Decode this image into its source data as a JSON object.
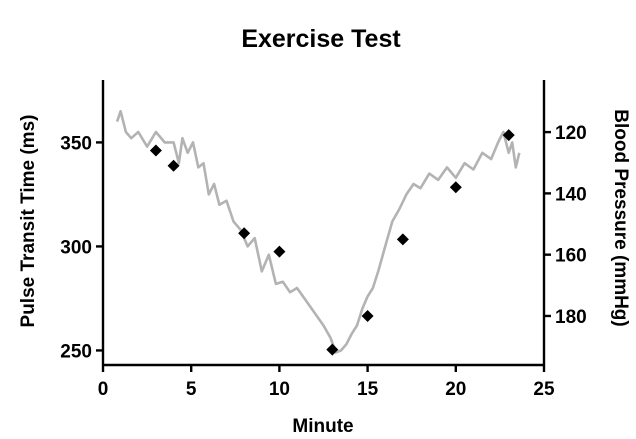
{
  "chart_data": {
    "type": "line",
    "title": "Exercise Test",
    "xlabel": "Minute",
    "ylabel": "Pulse Transit Time (ms)",
    "y2label": "Blood Pressure (mmHg)",
    "xlim": [
      0,
      25
    ],
    "ylim": [
      243,
      380
    ],
    "y2lim": [
      196,
      103
    ],
    "xticks": [
      "0",
      "5",
      "10",
      "15",
      "20",
      "25"
    ],
    "yticks": [
      "250",
      "300",
      "350"
    ],
    "y2ticks": [
      "120",
      "140",
      "160",
      "180"
    ],
    "grid": false,
    "colors": {
      "trace": "#b3b3b3",
      "points": "#000000"
    },
    "series": [
      {
        "axis": "left",
        "style": "line",
        "x": [
          0.8,
          1.0,
          1.3,
          1.6,
          2.0,
          2.5,
          3.0,
          3.5,
          4.0,
          4.3,
          4.5,
          4.8,
          5.1,
          5.4,
          5.7,
          6.0,
          6.3,
          6.6,
          7.0,
          7.4,
          7.8,
          8.2,
          8.6,
          9.0,
          9.4,
          9.8,
          10.2,
          10.6,
          11.0,
          11.5,
          12.0,
          12.5,
          12.9,
          13.2,
          13.5,
          13.8,
          14.1,
          14.4,
          14.7,
          15.0,
          15.3,
          15.6,
          16.0,
          16.4,
          16.8,
          17.2,
          17.6,
          18.0,
          18.5,
          19.0,
          19.5,
          20.0,
          20.5,
          21.0,
          21.5,
          22.0,
          22.4,
          22.7,
          23.0,
          23.2,
          23.4,
          23.6
        ],
        "y": [
          360,
          365,
          355,
          352,
          355,
          348,
          355,
          350,
          350,
          340,
          352,
          345,
          350,
          338,
          340,
          325,
          330,
          320,
          322,
          312,
          308,
          300,
          304,
          288,
          296,
          282,
          283,
          278,
          280,
          274,
          268,
          262,
          256,
          249,
          250,
          253,
          258,
          262,
          270,
          276,
          280,
          288,
          300,
          312,
          318,
          325,
          330,
          328,
          335,
          332,
          338,
          333,
          340,
          337,
          345,
          342,
          350,
          355,
          345,
          350,
          338,
          345
        ]
      },
      {
        "axis": "right",
        "style": "points",
        "marker": "diamond",
        "x": [
          3,
          4,
          8,
          10,
          13,
          15,
          17,
          20,
          23
        ],
        "y": [
          126,
          131,
          153,
          159,
          191,
          180,
          155,
          138,
          121
        ]
      }
    ]
  }
}
